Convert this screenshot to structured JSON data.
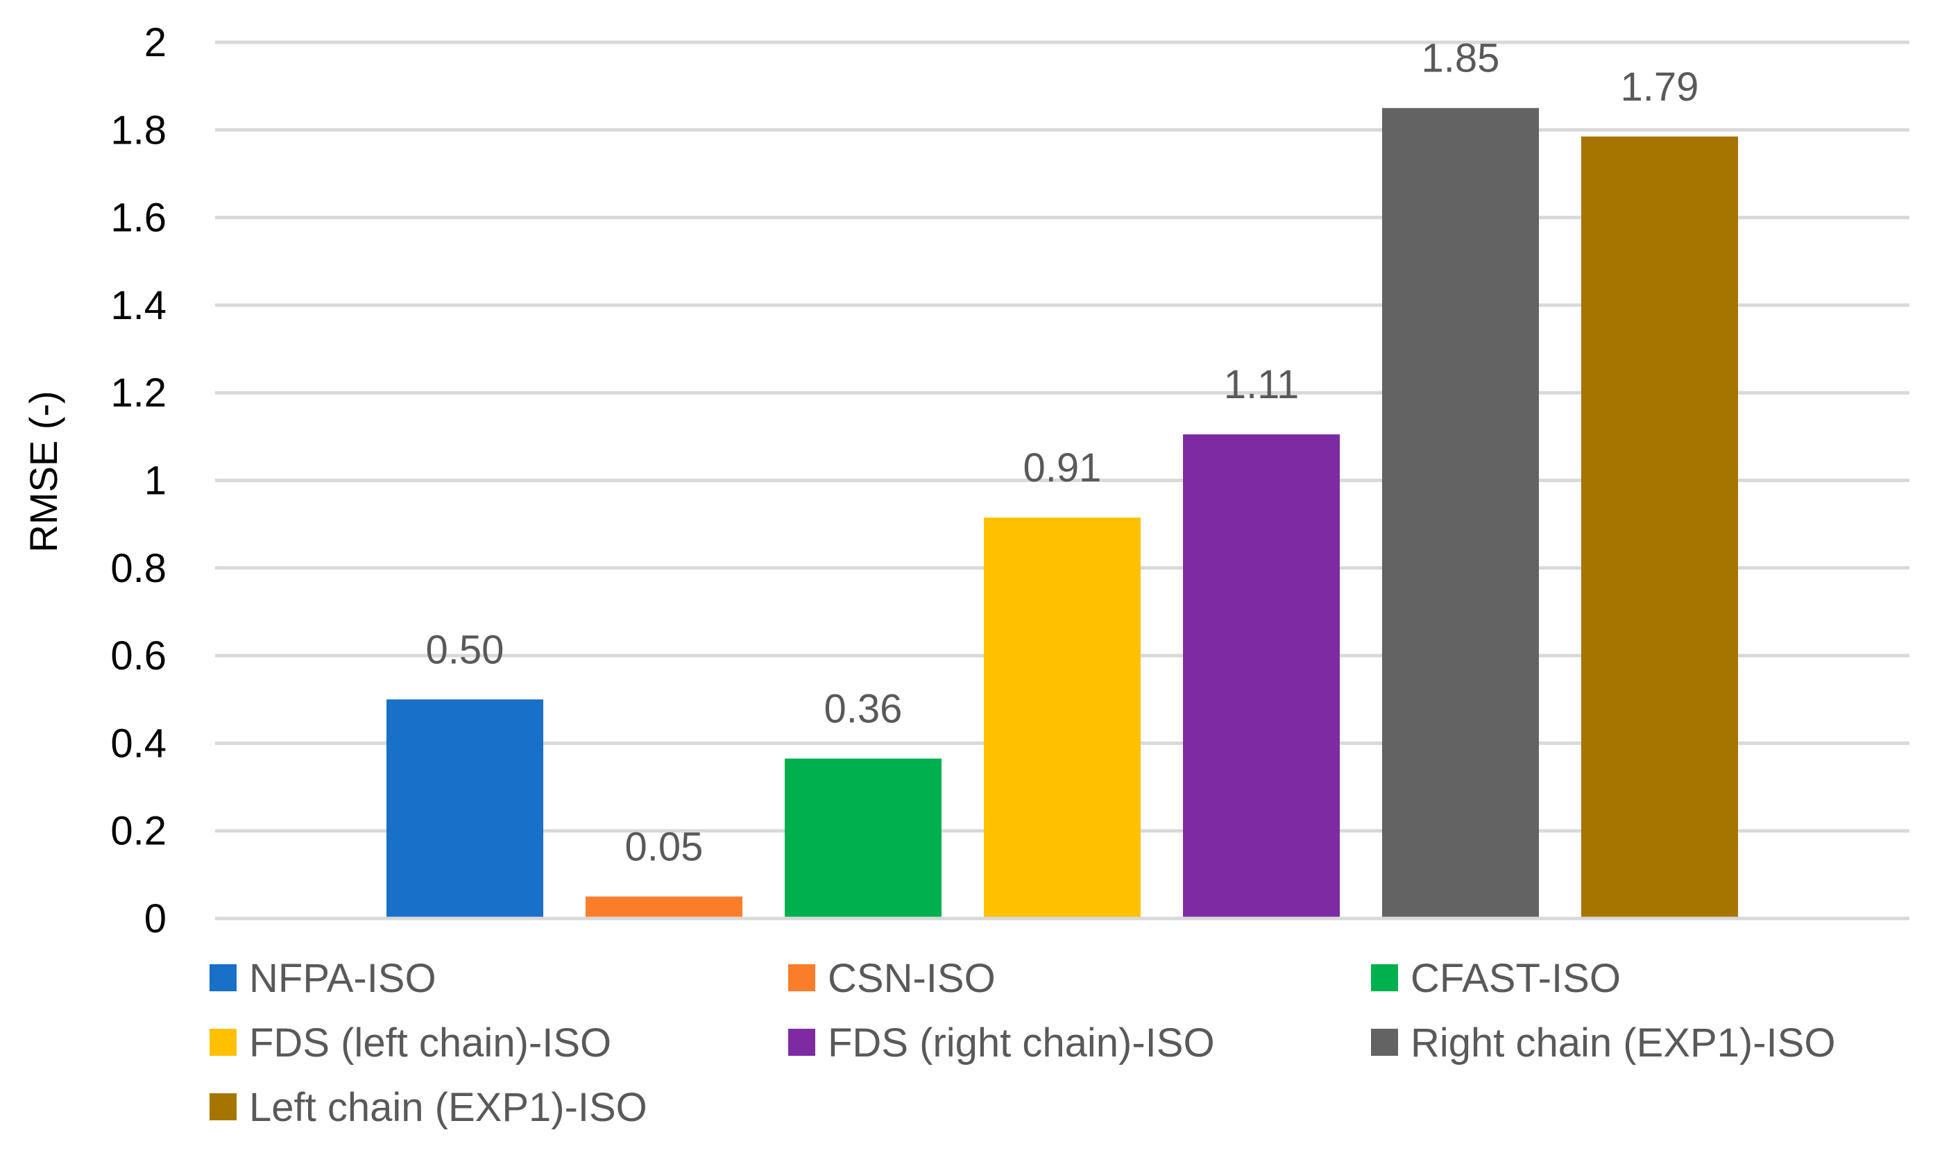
{
  "chart_data": {
    "type": "bar",
    "title": "",
    "xlabel": "",
    "ylabel": "RMSE (-)",
    "ylim": [
      0,
      2
    ],
    "yticks": [
      "0",
      "0.2",
      "0.4",
      "0.6",
      "0.8",
      "1",
      "1.2",
      "1.4",
      "1.6",
      "1.8",
      "2"
    ],
    "grid": true,
    "legend_position": "bottom",
    "series": [
      {
        "name": "NFPA-ISO",
        "value": 0.5,
        "label": "0.50",
        "color": "#1870C8"
      },
      {
        "name": "CSN-ISO",
        "value": 0.05,
        "label": "0.05",
        "color": "#FA7E2A"
      },
      {
        "name": "CFAST-ISO",
        "value": 0.365,
        "label": "0.36",
        "color": "#00B04F"
      },
      {
        "name": "FDS (left chain)-ISO",
        "value": 0.915,
        "label": "0.91",
        "color": "#FFC000"
      },
      {
        "name": "FDS (right chain)-ISO",
        "value": 1.105,
        "label": "1.11",
        "color": "#7E2BA3"
      },
      {
        "name": "Right chain (EXP1)-ISO",
        "value": 1.85,
        "label": "1.85",
        "color": "#636363"
      },
      {
        "name": "Left chain (EXP1)-ISO",
        "value": 1.785,
        "label": "1.79",
        "color": "#A67500"
      }
    ]
  }
}
